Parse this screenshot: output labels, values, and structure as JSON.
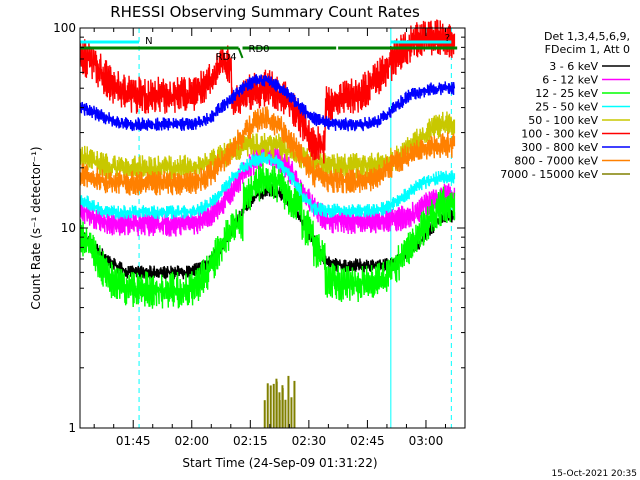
{
  "chart_data": {
    "type": "line",
    "title": "RHESSI Observing Summary Count Rates",
    "xlabel": "Start Time (24-Sep-09 01:31:22)",
    "ylabel": "Count Rate (s⁻¹ detector⁻¹)",
    "yscale": "log",
    "ylim": [
      1,
      100
    ],
    "xlim": [
      "01:31:22",
      "03:10:00"
    ],
    "x_ticks": [
      "01:45",
      "02:00",
      "02:15",
      "02:30",
      "02:45",
      "03:00"
    ],
    "y_ticks": [
      "1",
      "10",
      "100"
    ],
    "legend_header": [
      "Det 1,3,4,5,6,9,",
      "FDecim 1, Att 0"
    ],
    "legend_position": "right",
    "footer_date": "15-Oct-2021 20:35",
    "x": [
      "01:33",
      "01:36",
      "01:39",
      "01:42",
      "01:45",
      "01:48",
      "01:51",
      "01:54",
      "01:57",
      "02:00",
      "02:03",
      "02:06",
      "02:09",
      "02:12",
      "02:15",
      "02:18",
      "02:21",
      "02:24",
      "02:27",
      "02:30",
      "02:33",
      "02:36",
      "02:39",
      "02:42",
      "02:45",
      "02:48",
      "02:51",
      "02:54",
      "02:57",
      "03:00",
      "03:03",
      "03:06"
    ],
    "series": [
      {
        "name": "3 - 6 keV",
        "color": "#000000",
        "values": [
          9.5,
          8.2,
          7.2,
          6.5,
          6.0,
          6.0,
          6.0,
          6.0,
          6.0,
          6.0,
          6.2,
          6.8,
          8.0,
          10.0,
          12.5,
          14.5,
          15.5,
          15.0,
          13.0,
          10.5,
          8.5,
          6.8,
          6.5,
          6.5,
          6.5,
          6.5,
          6.5,
          6.8,
          7.5,
          8.5,
          10.0,
          11.5
        ]
      },
      {
        "name": "6 - 12 keV",
        "color": "#ff00ff",
        "values": [
          12.5,
          11.5,
          10.8,
          10.5,
          10.5,
          10.5,
          10.5,
          10.5,
          10.5,
          10.5,
          10.8,
          11.5,
          13.0,
          15.5,
          19.0,
          22.0,
          23.5,
          22.0,
          19.0,
          15.0,
          12.5,
          11.0,
          10.8,
          10.8,
          10.8,
          10.8,
          10.8,
          11.0,
          11.5,
          12.5,
          13.5,
          14.5
        ]
      },
      {
        "name": "12 - 25 keV",
        "color": "#00ff00",
        "values": [
          9.0,
          7.8,
          6.2,
          5.2,
          5.0,
          4.9,
          4.9,
          4.9,
          4.9,
          4.9,
          5.2,
          6.2,
          8.0,
          10.5,
          14.0,
          16.5,
          17.5,
          16.5,
          13.5,
          10.0,
          7.5,
          5.6,
          5.3,
          5.3,
          5.3,
          5.3,
          5.5,
          6.5,
          8.0,
          9.5,
          11.5,
          13.0
        ]
      },
      {
        "name": "25 - 50 keV",
        "color": "#00ffff",
        "values": [
          14.0,
          13.0,
          12.2,
          12.0,
          12.0,
          12.0,
          12.0,
          12.0,
          12.0,
          12.0,
          12.3,
          13.2,
          15.0,
          18.0,
          20.5,
          22.0,
          22.5,
          21.0,
          18.0,
          14.5,
          12.5,
          12.2,
          12.2,
          12.2,
          12.2,
          12.3,
          12.5,
          13.5,
          15.0,
          16.5,
          17.5,
          18.0
        ]
      },
      {
        "name": "50 - 100 keV",
        "color": "#c8c800",
        "values": [
          23.0,
          21.5,
          20.5,
          20.0,
          20.0,
          20.0,
          20.0,
          20.0,
          20.0,
          20.0,
          20.5,
          21.0,
          22.5,
          24.5,
          25.5,
          26.0,
          26.0,
          25.5,
          24.0,
          22.0,
          21.0,
          20.5,
          20.5,
          20.5,
          20.5,
          20.5,
          21.0,
          22.5,
          25.0,
          28.0,
          31.0,
          33.0
        ]
      },
      {
        "name": "100 - 300 keV",
        "color": "#ff0000",
        "values": [
          72.0,
          68.0,
          58.0,
          50.0,
          47.0,
          46.0,
          46.0,
          46.0,
          46.0,
          46.0,
          48.0,
          55.0,
          66.0,
          42.0,
          46.0,
          49.0,
          50.0,
          47.0,
          41.0,
          33.0,
          26.0,
          42.0,
          44.0,
          45.0,
          47.0,
          53.0,
          62.0,
          72.0,
          82.0,
          88.0,
          90.0,
          88.0
        ]
      },
      {
        "name": "300 - 800 keV",
        "color": "#0000ff",
        "values": [
          40.0,
          38.0,
          36.0,
          34.0,
          33.0,
          33.0,
          33.0,
          33.0,
          33.0,
          33.0,
          33.5,
          35.0,
          40.0,
          45.0,
          51.0,
          55.0,
          55.0,
          51.0,
          45.0,
          39.0,
          35.0,
          33.5,
          33.0,
          33.0,
          33.0,
          33.5,
          36.0,
          41.0,
          45.5,
          48.0,
          49.5,
          50.0
        ]
      },
      {
        "name": "800 - 7000 keV",
        "color": "#ff8000",
        "values": [
          18.5,
          17.5,
          17.0,
          16.8,
          16.8,
          16.8,
          16.8,
          16.8,
          16.8,
          16.8,
          17.0,
          18.5,
          21.0,
          25.0,
          30.0,
          34.0,
          35.0,
          32.0,
          27.0,
          22.0,
          18.5,
          17.5,
          17.2,
          17.2,
          17.2,
          17.5,
          19.5,
          21.5,
          23.0,
          24.5,
          25.5,
          26.0
        ]
      },
      {
        "name": "7000 - 15000 keV",
        "color": "#808000",
        "values": [
          null,
          null,
          null,
          null,
          null,
          null,
          null,
          null,
          null,
          null,
          null,
          null,
          null,
          null,
          null,
          null,
          1.5,
          1.6,
          null,
          null,
          null,
          null,
          null,
          null,
          null,
          null,
          null,
          null,
          null,
          null,
          null,
          null
        ]
      }
    ],
    "markers": [
      {
        "label": "N",
        "color": "#00ffff",
        "spans": [
          [
            "01:31:22",
            "01:46:30"
          ],
          [
            "02:51:00",
            "03:06:30"
          ]
        ]
      },
      {
        "label": "RD0",
        "color": "#008000",
        "spans": [
          [
            "01:31:22",
            "02:12:00"
          ],
          [
            "02:13:00",
            "02:37:00"
          ],
          [
            "02:37:30",
            "03:08:00"
          ]
        ]
      },
      {
        "label": "RD4",
        "color": "#008000"
      },
      {
        "label": "?",
        "color": "#ff0000"
      }
    ],
    "vertical_lines": [
      {
        "x": "01:31:22",
        "color": "#00ffff",
        "style": "solid"
      },
      {
        "x": "01:46:30",
        "color": "#00ffff",
        "style": "dashed"
      },
      {
        "x": "02:51:00",
        "color": "#00ffff",
        "style": "solid"
      },
      {
        "x": "03:06:30",
        "color": "#00ffff",
        "style": "dashed"
      }
    ]
  }
}
